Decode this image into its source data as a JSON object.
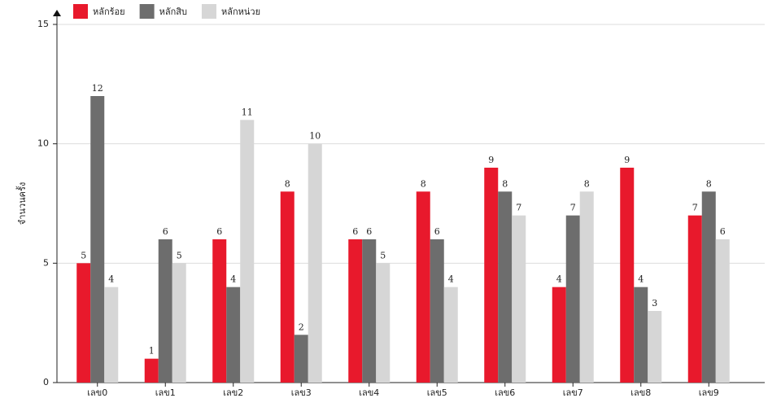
{
  "chart_data": {
    "type": "bar",
    "y_label": "จำนวนครั้ง",
    "categories": [
      "เลข0",
      "เลข1",
      "เลข2",
      "เลข3",
      "เลข4",
      "เลข5",
      "เลข6",
      "เลข7",
      "เลข8",
      "เลข9"
    ],
    "series": [
      {
        "name": "หลักร้อย",
        "color": "#e8192c",
        "values": [
          5,
          1,
          6,
          8,
          6,
          8,
          9,
          4,
          9,
          7
        ]
      },
      {
        "name": "หลักสิบ",
        "color": "#6d6d6d",
        "values": [
          12,
          6,
          4,
          2,
          6,
          6,
          8,
          7,
          4,
          8
        ]
      },
      {
        "name": "หลักหน่วย",
        "color": "#d6d6d6",
        "values": [
          4,
          5,
          11,
          10,
          5,
          4,
          7,
          8,
          3,
          6
        ]
      }
    ],
    "ylim": [
      0,
      15
    ],
    "yticks": [
      0,
      5,
      10,
      15
    ],
    "grid": true
  }
}
